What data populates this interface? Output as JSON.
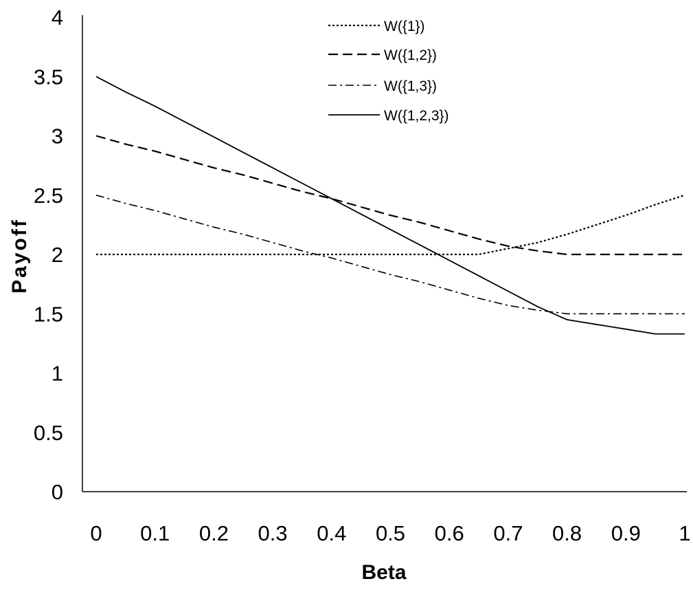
{
  "chart_data": {
    "type": "line",
    "title": "",
    "xlabel": "Beta",
    "ylabel": "Payoff",
    "xlim": [
      0,
      1
    ],
    "ylim": [
      0,
      4
    ],
    "x_ticks": [
      "0",
      "0.1",
      "0.2",
      "0.3",
      "0.4",
      "0.5",
      "0.6",
      "0.7",
      "0.8",
      "0.9",
      "1"
    ],
    "y_ticks": [
      "0",
      "0.5",
      "1",
      "1.5",
      "2",
      "2.5",
      "3",
      "3.5",
      "4"
    ],
    "grid": false,
    "legend_position": "top-center",
    "x": [
      0,
      0.05,
      0.1,
      0.15,
      0.2,
      0.25,
      0.3,
      0.35,
      0.4,
      0.45,
      0.5,
      0.55,
      0.6,
      0.65,
      0.7,
      0.75,
      0.8,
      0.85,
      0.9,
      0.95,
      1
    ],
    "series": [
      {
        "name": "W({1})",
        "style": "dotted",
        "values": [
          2,
          2,
          2,
          2,
          2,
          2,
          2,
          2,
          2,
          2,
          2,
          2,
          2,
          2,
          2.05,
          2.1,
          2.17,
          2.25,
          2.33,
          2.42,
          2.5
        ]
      },
      {
        "name": "W({1,2})",
        "style": "dashed",
        "values": [
          3,
          2.93,
          2.87,
          2.8,
          2.73,
          2.67,
          2.6,
          2.53,
          2.47,
          2.4,
          2.33,
          2.27,
          2.2,
          2.13,
          2.07,
          2.03,
          2,
          2,
          2,
          2,
          2
        ]
      },
      {
        "name": "W({1,3})",
        "style": "dash-dot",
        "values": [
          2.5,
          2.43,
          2.37,
          2.3,
          2.23,
          2.17,
          2.1,
          2.03,
          1.97,
          1.9,
          1.83,
          1.77,
          1.7,
          1.63,
          1.57,
          1.53,
          1.5,
          1.5,
          1.5,
          1.5,
          1.5
        ]
      },
      {
        "name": "W({1,2,3})",
        "style": "solid",
        "values": [
          3.5,
          3.37,
          3.25,
          3.12,
          2.99,
          2.86,
          2.73,
          2.6,
          2.47,
          2.34,
          2.21,
          2.08,
          1.95,
          1.82,
          1.69,
          1.56,
          1.45,
          1.41,
          1.37,
          1.33,
          1.33
        ]
      }
    ]
  }
}
